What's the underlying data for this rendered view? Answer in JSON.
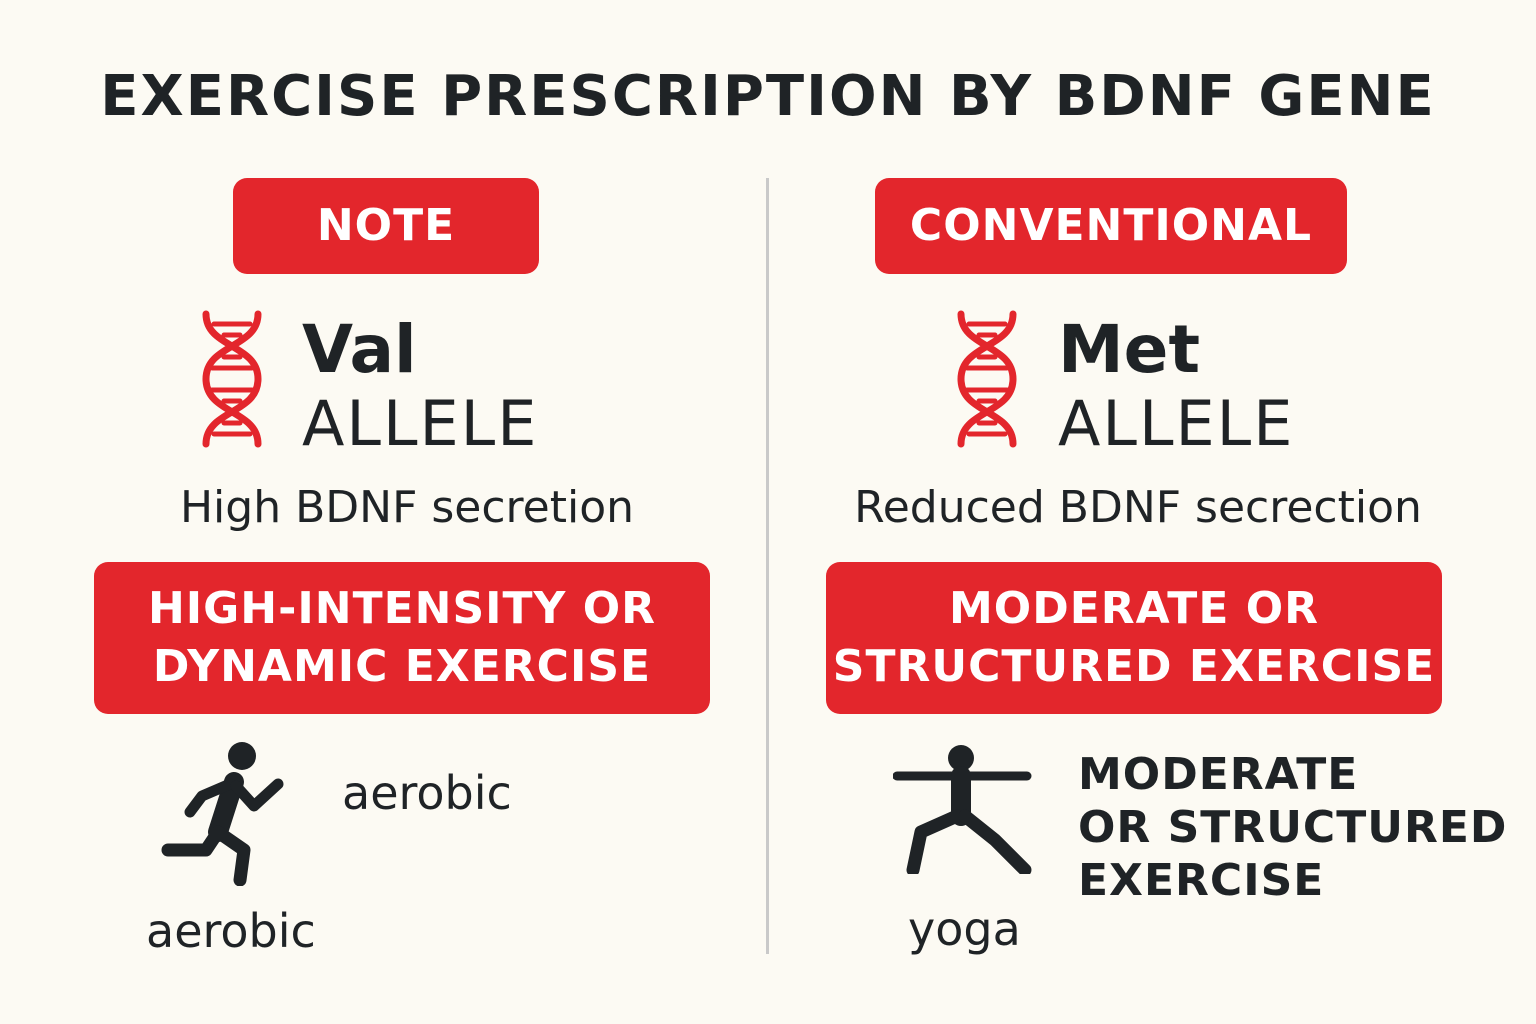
{
  "title": "EXERCISE PRESCRIPTION BY BDNF GENE",
  "colors": {
    "accent": "#e3262c",
    "background": "#fcfaf3",
    "text": "#1f2326",
    "divider": "#c9c9c9"
  },
  "left": {
    "tag": "NOTE",
    "allele_name": "Val",
    "allele_word": "ALLELE",
    "icon": "dna-icon",
    "secretion": "High BDNF secretion",
    "recommendation": [
      "HIGH-INTENSITY OR",
      "DYNAMIC EXERCISE"
    ],
    "figure_icon": "running-person-icon",
    "side_label": "aerobic",
    "caption": "aerobic"
  },
  "right": {
    "tag": "CONVENTIONAL",
    "allele_name": "Met",
    "allele_word": "ALLELE",
    "icon": "dna-icon",
    "secretion": "Reduced BDNF secrection",
    "recommendation": [
      "MODERATE OR",
      "STRUCTURED EXERCISE"
    ],
    "figure_icon": "yoga-pose-icon",
    "side_label": [
      "MODERATE",
      "OR STRUCTURED",
      "EXERCISE"
    ],
    "caption": "yoga"
  }
}
